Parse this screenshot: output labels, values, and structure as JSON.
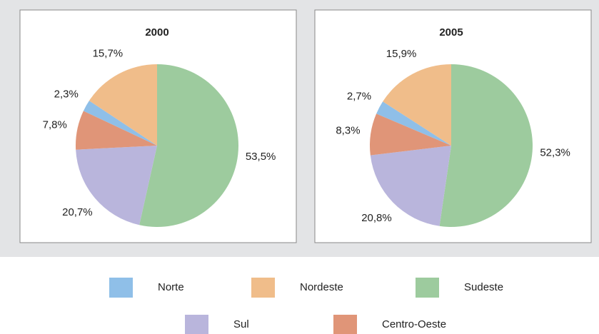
{
  "chart_data": [
    {
      "type": "pie",
      "title": "2000",
      "categories": [
        "Norte",
        "Nordeste",
        "Sudeste",
        "Sul",
        "Centro-Oeste"
      ],
      "values": [
        2.3,
        15.7,
        53.5,
        20.7,
        7.8
      ],
      "value_labels": [
        "2,3%",
        "15,7%",
        "53,5%",
        "20,7%",
        "7,8%"
      ],
      "colors": [
        "#8fbfe8",
        "#f0bd8a",
        "#9dcb9e",
        "#b9b5dc",
        "#e09578"
      ]
    },
    {
      "type": "pie",
      "title": "2005",
      "categories": [
        "Norte",
        "Nordeste",
        "Sudeste",
        "Sul",
        "Centro-Oeste"
      ],
      "values": [
        2.7,
        15.9,
        52.3,
        20.8,
        8.3
      ],
      "value_labels": [
        "2,7%",
        "15,9%",
        "52,3%",
        "20,8%",
        "8,3%"
      ],
      "colors": [
        "#8fbfe8",
        "#f0bd8a",
        "#9dcb9e",
        "#b9b5dc",
        "#e09578"
      ]
    }
  ]
}
